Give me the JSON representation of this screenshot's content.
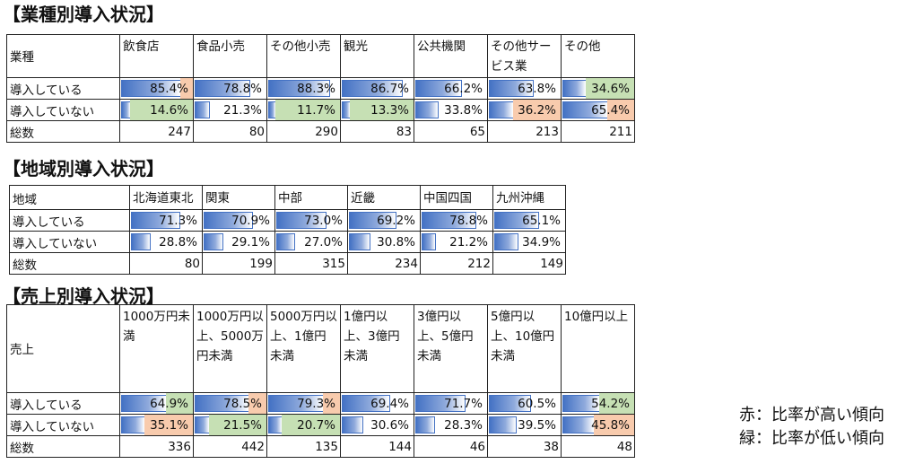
{
  "highlight_colors": {
    "red": "#f8cbad",
    "green": "#c6e0b4"
  },
  "tables": [
    {
      "title": "【業種別導入状況】",
      "headers": [
        "業種",
        "飲食店",
        "食品小売",
        "その他小売",
        "観光",
        "公共機関",
        "その他サービス業",
        "その他"
      ],
      "rows": [
        {
          "label": "導入している",
          "type": "pct",
          "values": [
            85.4,
            78.8,
            88.3,
            86.7,
            66.2,
            63.8,
            34.6
          ],
          "display": [
            "85.4%",
            "78.8%",
            "88.3%",
            "86.7%",
            "66.2%",
            "63.8%",
            "34.6%"
          ],
          "highlight": [
            "red",
            "",
            "",
            "",
            "",
            "",
            "green"
          ]
        },
        {
          "label": "導入していない",
          "type": "pct",
          "values": [
            14.6,
            21.3,
            11.7,
            13.3,
            33.8,
            36.2,
            65.4
          ],
          "display": [
            "14.6%",
            "21.3%",
            "11.7%",
            "13.3%",
            "33.8%",
            "36.2%",
            "65.4%"
          ],
          "highlight": [
            "green",
            "",
            "green",
            "green",
            "",
            "red",
            "red"
          ]
        },
        {
          "label": "総数",
          "type": "num",
          "display": [
            "247",
            "80",
            "290",
            "83",
            "65",
            "213",
            "211"
          ]
        }
      ]
    },
    {
      "title": "【地域別導入状況】",
      "headers": [
        "地域",
        "北海道東北",
        "関東",
        "中部",
        "近畿",
        "中国四国",
        "九州沖縄"
      ],
      "rows": [
        {
          "label": "導入している",
          "type": "pct",
          "values": [
            71.3,
            70.9,
            73.0,
            69.2,
            78.8,
            65.1
          ],
          "display": [
            "71.3%",
            "70.9%",
            "73.0%",
            "69.2%",
            "78.8%",
            "65.1%"
          ],
          "highlight": [
            "",
            "",
            "",
            "",
            "",
            ""
          ]
        },
        {
          "label": "導入していない",
          "type": "pct",
          "values": [
            28.8,
            29.1,
            27.0,
            30.8,
            21.2,
            34.9
          ],
          "display": [
            "28.8%",
            "29.1%",
            "27.0%",
            "30.8%",
            "21.2%",
            "34.9%"
          ],
          "highlight": [
            "",
            "",
            "",
            "",
            "",
            ""
          ]
        },
        {
          "label": "総数",
          "type": "num",
          "display": [
            "80",
            "199",
            "315",
            "234",
            "212",
            "149"
          ]
        }
      ]
    },
    {
      "title": "【売上別導入状況】",
      "headers": [
        "売上",
        "1000万円未満",
        "1000万円以上、5000万円未満",
        "5000万円以上、1億円未満",
        "1億円以上、3億円未満",
        "3億円以上、5億円未満",
        "5億円以上、10億円未満",
        "10億円以上"
      ],
      "rows": [
        {
          "label": "導入している",
          "type": "pct",
          "values": [
            64.9,
            78.5,
            79.3,
            69.4,
            71.7,
            60.5,
            54.2
          ],
          "display": [
            "64.9%",
            "78.5%",
            "79.3%",
            "69.4%",
            "71.7%",
            "60.5%",
            "54.2%"
          ],
          "highlight": [
            "green",
            "red",
            "red",
            "",
            "",
            "",
            "green"
          ]
        },
        {
          "label": "導入していない",
          "type": "pct",
          "values": [
            35.1,
            21.5,
            20.7,
            30.6,
            28.3,
            39.5,
            45.8
          ],
          "display": [
            "35.1%",
            "21.5%",
            "20.7%",
            "30.6%",
            "28.3%",
            "39.5%",
            "45.8%"
          ],
          "highlight": [
            "red",
            "green",
            "green",
            "",
            "",
            "",
            "red"
          ]
        },
        {
          "label": "総数",
          "type": "num",
          "display": [
            "336",
            "442",
            "135",
            "144",
            "46",
            "38",
            "48"
          ]
        }
      ]
    }
  ],
  "legend": {
    "red_line": "赤：比率が高い傾向",
    "green_line": "緑：比率が低い傾向"
  }
}
